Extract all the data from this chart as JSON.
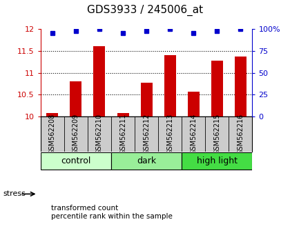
{
  "title": "GDS3933 / 245006_at",
  "samples": [
    "GSM562208",
    "GSM562209",
    "GSM562210",
    "GSM562211",
    "GSM562212",
    "GSM562213",
    "GSM562214",
    "GSM562215",
    "GSM562216"
  ],
  "red_values": [
    10.08,
    10.8,
    11.61,
    10.08,
    10.77,
    11.4,
    10.57,
    11.28,
    11.38
  ],
  "blue_values": [
    96,
    98,
    100,
    96,
    98,
    100,
    96,
    98,
    100
  ],
  "groups": [
    {
      "label": "control",
      "start": 0,
      "end": 3,
      "color": "#ccffcc"
    },
    {
      "label": "dark",
      "start": 3,
      "end": 6,
      "color": "#99ee99"
    },
    {
      "label": "high light",
      "start": 6,
      "end": 9,
      "color": "#44dd44"
    }
  ],
  "ylim_left": [
    10,
    12
  ],
  "yticks_left": [
    10,
    10.5,
    11,
    11.5,
    12
  ],
  "ylim_right": [
    0,
    100
  ],
  "yticks_right": [
    0,
    25,
    50,
    75,
    100
  ],
  "bar_color": "#cc0000",
  "dot_color": "#0000cc",
  "bar_width": 0.5,
  "bg_color": "#ffffff",
  "label_fontsize": 8,
  "title_fontsize": 11,
  "stress_label": "stress",
  "legend_red": "transformed count",
  "legend_blue": "percentile rank within the sample",
  "group_label_fontsize": 9,
  "sample_label_fontsize": 7
}
